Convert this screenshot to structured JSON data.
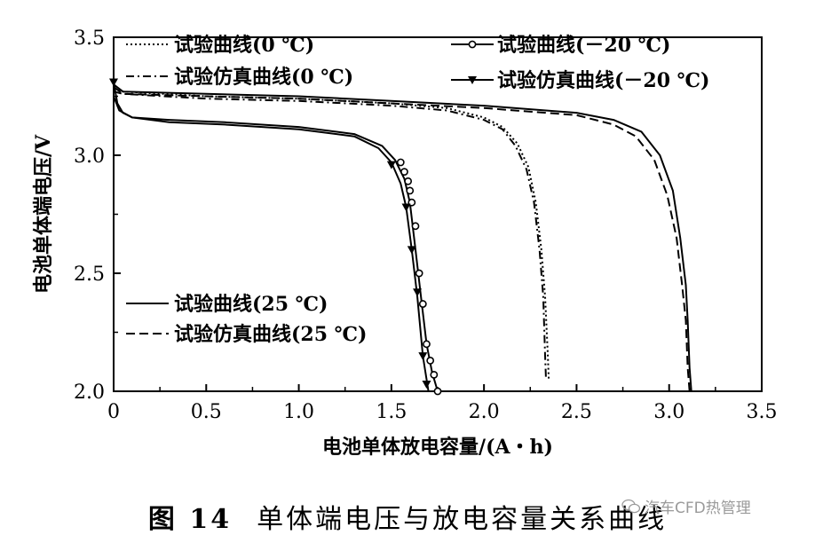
{
  "chart_data": {
    "type": "line",
    "xlabel": "电池单体放电容量/(A・h)",
    "ylabel": "电池单体端电压/V",
    "xlim": [
      0,
      3.5
    ],
    "ylim": [
      2.0,
      3.5
    ],
    "xticks": [
      "0",
      "0.5",
      "1.0",
      "1.5",
      "2.0",
      "2.5",
      "3.0",
      "3.5"
    ],
    "yticks": [
      "2.0",
      "2.5",
      "3.0",
      "3.5"
    ],
    "series": [
      {
        "name": "试验曲线(0 ℃)",
        "style": "dotted",
        "marker": "none",
        "x": [
          0,
          0.05,
          0.5,
          1.0,
          1.5,
          1.8,
          2.0,
          2.1,
          2.18,
          2.24,
          2.28,
          2.31,
          2.33,
          2.345,
          2.35
        ],
        "y": [
          3.28,
          3.27,
          3.25,
          3.24,
          3.22,
          3.2,
          3.16,
          3.12,
          3.05,
          2.95,
          2.8,
          2.6,
          2.4,
          2.15,
          2.05
        ]
      },
      {
        "name": "试验仿真曲线(0 ℃)",
        "style": "dashdot",
        "marker": "none",
        "x": [
          0,
          0.05,
          0.5,
          1.0,
          1.5,
          1.8,
          2.0,
          2.1,
          2.17,
          2.23,
          2.27,
          2.3,
          2.32,
          2.33,
          2.335
        ],
        "y": [
          3.27,
          3.26,
          3.24,
          3.23,
          3.21,
          3.19,
          3.15,
          3.11,
          3.04,
          2.94,
          2.8,
          2.6,
          2.4,
          2.15,
          2.05
        ]
      },
      {
        "name": "试验曲线(－20 ℃)",
        "style": "solid",
        "marker": "circle",
        "x": [
          0,
          0.03,
          0.1,
          0.3,
          0.6,
          1.0,
          1.3,
          1.45,
          1.52,
          1.57,
          1.6,
          1.63,
          1.66,
          1.69,
          1.72,
          1.75
        ],
        "y": [
          3.25,
          3.19,
          3.16,
          3.15,
          3.14,
          3.12,
          3.09,
          3.04,
          2.98,
          2.9,
          2.8,
          2.6,
          2.4,
          2.2,
          2.08,
          2.0
        ],
        "marker_x": [
          1.55,
          1.57,
          1.59,
          1.6,
          1.61,
          1.63,
          1.65,
          1.67,
          1.69,
          1.71,
          1.73,
          1.75
        ],
        "marker_y": [
          2.97,
          2.93,
          2.89,
          2.85,
          2.8,
          2.7,
          2.5,
          2.37,
          2.2,
          2.13,
          2.07,
          2.0
        ]
      },
      {
        "name": "试验仿真曲线(－20 ℃)",
        "style": "solid",
        "marker": "triangle-down",
        "x": [
          0,
          0.02,
          0.05,
          0.1,
          0.3,
          0.6,
          1.0,
          1.3,
          1.43,
          1.5,
          1.55,
          1.58,
          1.61,
          1.64,
          1.67,
          1.7
        ],
        "y": [
          3.31,
          3.22,
          3.18,
          3.16,
          3.14,
          3.13,
          3.11,
          3.08,
          3.03,
          2.97,
          2.88,
          2.78,
          2.6,
          2.4,
          2.15,
          2.0
        ],
        "marker_x": [
          0,
          1.5,
          1.58,
          1.61,
          1.64,
          1.67,
          1.69
        ],
        "marker_y": [
          3.31,
          2.96,
          2.78,
          2.6,
          2.42,
          2.15,
          2.03
        ]
      },
      {
        "name": "试验曲线(25 ℃)",
        "style": "solid",
        "marker": "none",
        "x": [
          0,
          0.05,
          0.5,
          1.0,
          1.5,
          2.0,
          2.5,
          2.7,
          2.85,
          2.95,
          3.02,
          3.06,
          3.09,
          3.1,
          3.11,
          3.12
        ],
        "y": [
          3.3,
          3.27,
          3.26,
          3.25,
          3.23,
          3.21,
          3.18,
          3.15,
          3.1,
          3.0,
          2.85,
          2.65,
          2.45,
          2.3,
          2.1,
          2.0
        ]
      },
      {
        "name": "试验仿真曲线(25 ℃)",
        "style": "dashed",
        "marker": "none",
        "x": [
          0,
          0.05,
          0.5,
          1.0,
          1.5,
          2.0,
          2.5,
          2.7,
          2.82,
          2.92,
          2.99,
          3.04,
          3.07,
          3.09,
          3.1,
          3.11
        ],
        "y": [
          3.29,
          3.26,
          3.25,
          3.24,
          3.22,
          3.2,
          3.17,
          3.13,
          3.08,
          2.98,
          2.83,
          2.65,
          2.45,
          2.3,
          2.1,
          2.0
        ]
      }
    ]
  },
  "caption": {
    "number": "图 14",
    "text": "单体端电压与放电容量关系曲线"
  },
  "watermark": {
    "text": "汽车CFD热管理",
    "icon": "wechat-icon"
  }
}
